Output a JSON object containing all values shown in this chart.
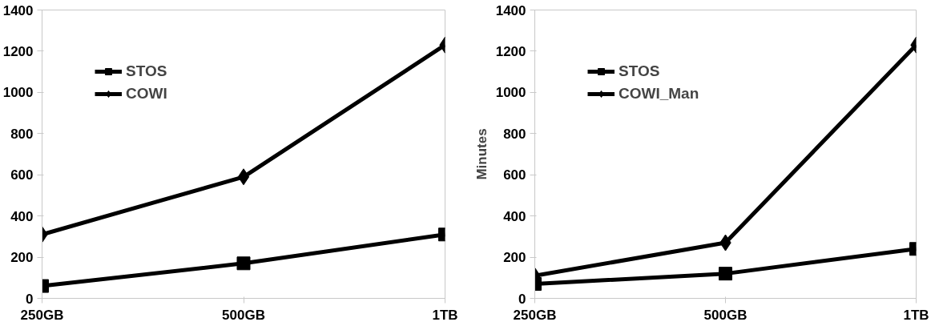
{
  "chart_data": [
    {
      "type": "line",
      "categories": [
        "250GB",
        "500GB",
        "1TB"
      ],
      "ylim": [
        0,
        1400
      ],
      "yticks": [
        0,
        200,
        400,
        600,
        800,
        1000,
        1200,
        1400
      ],
      "grid": false,
      "legend": "top left",
      "series": [
        {
          "name": "STOS",
          "color": "#000000",
          "marker": "square",
          "values": [
            60,
            170,
            310
          ]
        },
        {
          "name": "COWI",
          "color": "#000000",
          "marker": "diamond",
          "values": [
            310,
            590,
            1230
          ]
        }
      ]
    },
    {
      "type": "line",
      "categories": [
        "250GB",
        "500GB",
        "1TB"
      ],
      "ylabel": "Minutes",
      "ylim": [
        0,
        1400
      ],
      "yticks": [
        0,
        200,
        400,
        600,
        800,
        1000,
        1200,
        1400
      ],
      "grid": false,
      "legend": "top left",
      "series": [
        {
          "name": "STOS",
          "color": "#000000",
          "marker": "square",
          "values": [
            70,
            120,
            240
          ]
        },
        {
          "name": "COWI_Man",
          "color": "#000000",
          "marker": "diamond",
          "values": [
            110,
            270,
            1230
          ]
        }
      ]
    }
  ]
}
